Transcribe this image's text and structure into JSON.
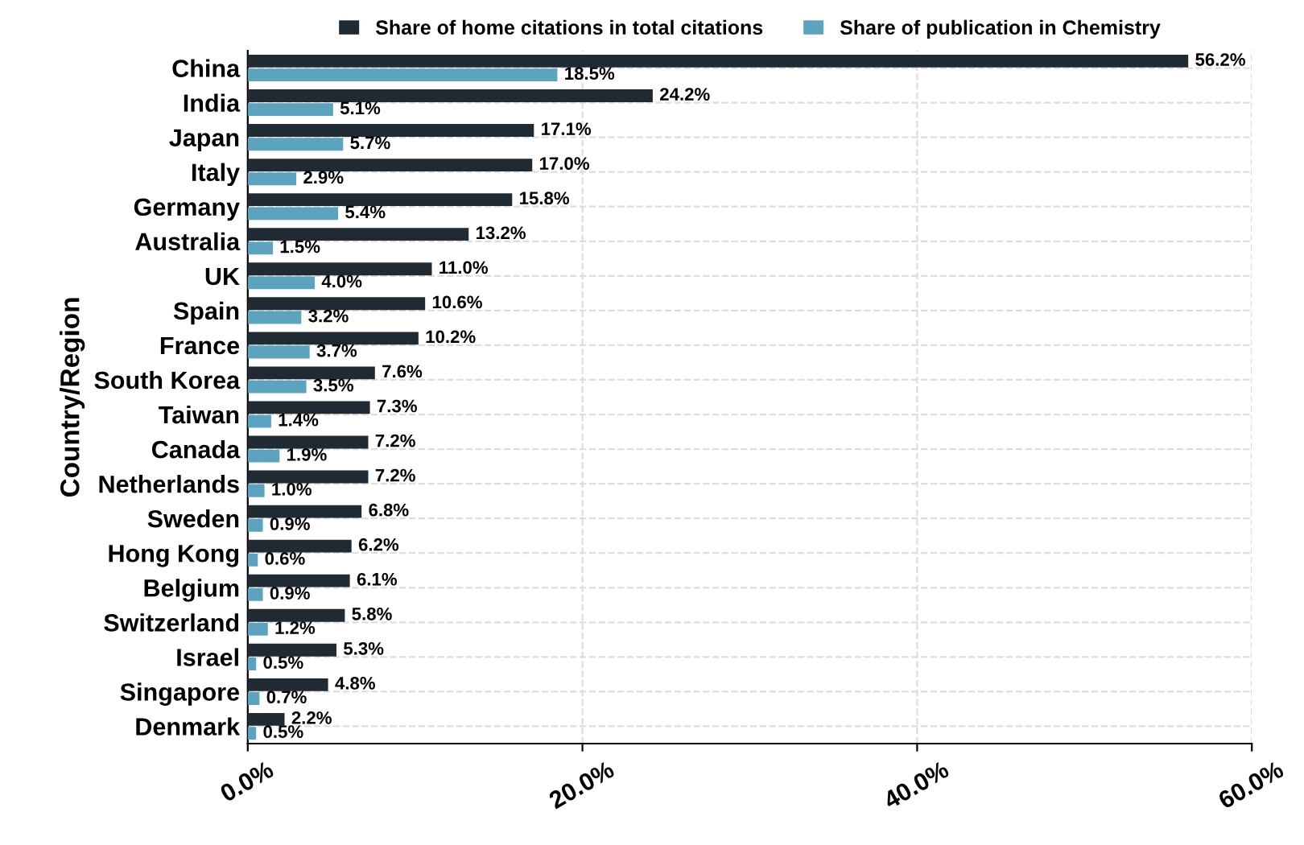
{
  "chart_data": {
    "type": "bar",
    "orientation": "horizontal",
    "ylabel": "Country/Region",
    "categories": [
      "China",
      "India",
      "Japan",
      "Italy",
      "Germany",
      "Australia",
      "UK",
      "Spain",
      "France",
      "South Korea",
      "Taiwan",
      "Canada",
      "Netherlands",
      "Sweden",
      "Hong Kong",
      "Belgium",
      "Switzerland",
      "Israel",
      "Singapore",
      "Denmark"
    ],
    "series": [
      {
        "name": "Share of home citations in total citations",
        "color": "#1f2a33",
        "values": [
          56.2,
          24.2,
          17.1,
          17.0,
          15.8,
          13.2,
          11.0,
          10.6,
          10.2,
          7.6,
          7.3,
          7.2,
          7.2,
          6.8,
          6.2,
          6.1,
          5.8,
          5.3,
          4.8,
          2.2
        ],
        "value_labels": [
          "56.2%",
          "24.2%",
          "17.1%",
          "17.0%",
          "15.8%",
          "13.2%",
          "11.0%",
          "10.6%",
          "10.2%",
          "7.6%",
          "7.3%",
          "7.2%",
          "7.2%",
          "6.8%",
          "6.2%",
          "6.1%",
          "5.8%",
          "5.3%",
          "4.8%",
          "2.2%"
        ]
      },
      {
        "name": "Share of publication in Chemistry",
        "color": "#5ba3bf",
        "values": [
          18.5,
          5.1,
          5.7,
          2.9,
          5.4,
          1.5,
          4.0,
          3.2,
          3.7,
          3.5,
          1.4,
          1.9,
          1.0,
          0.9,
          0.6,
          0.9,
          1.2,
          0.5,
          0.7,
          0.5
        ],
        "value_labels": [
          "18.5%",
          "5.1%",
          "5.7%",
          "2.9%",
          "5.4%",
          "1.5%",
          "4.0%",
          "3.2%",
          "3.7%",
          "3.5%",
          "1.4%",
          "1.9%",
          "1.0%",
          "0.9%",
          "0.6%",
          "0.9%",
          "1.2%",
          "0.5%",
          "0.7%",
          "0.5%"
        ]
      }
    ],
    "xlim": [
      0,
      60
    ],
    "xticks": [
      {
        "value": 0,
        "label": "0.0%"
      },
      {
        "value": 20,
        "label": "20.0%"
      },
      {
        "value": 40,
        "label": "40.0%"
      },
      {
        "value": 60,
        "label": "60.0%"
      }
    ],
    "grid": true,
    "legend": "top"
  }
}
